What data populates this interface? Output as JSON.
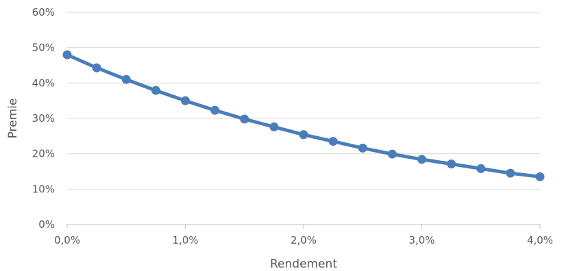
{
  "chart_data": {
    "type": "line",
    "title": "",
    "xlabel": "Rendement",
    "ylabel": "Premie",
    "x_ticks": [
      "0,0%",
      "1,0%",
      "2,0%",
      "3,0%",
      "4,0%"
    ],
    "y_ticks": [
      "0%",
      "10%",
      "20%",
      "30%",
      "40%",
      "50%",
      "60%"
    ],
    "xlim": [
      0,
      4
    ],
    "ylim": [
      0,
      60
    ],
    "grid": "horizontal",
    "legend": "none",
    "series": [
      {
        "color": "#4a7ebb",
        "x": [
          0,
          0.25,
          0.5,
          0.75,
          1.0,
          1.25,
          1.5,
          1.75,
          2.0,
          2.25,
          2.5,
          2.75,
          3.0,
          3.25,
          3.5,
          3.75,
          4.0
        ],
        "values": [
          48.0,
          44.3,
          41.0,
          37.9,
          35.0,
          32.3,
          29.8,
          27.6,
          25.4,
          23.5,
          21.6,
          19.9,
          18.4,
          17.1,
          15.8,
          14.5,
          13.5
        ]
      }
    ]
  }
}
